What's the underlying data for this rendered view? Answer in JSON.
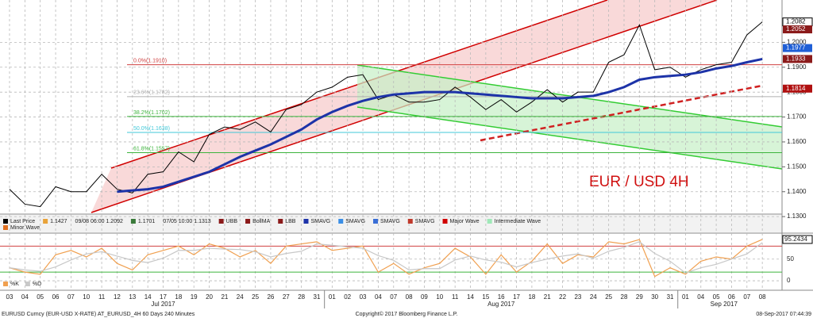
{
  "chart_data": {
    "type": "line",
    "annotation": "EUR / USD 4H",
    "categories": [
      "03",
      "04",
      "05",
      "06",
      "07",
      "10",
      "11",
      "12",
      "13",
      "14",
      "17",
      "18",
      "19",
      "20",
      "21",
      "24",
      "25",
      "26",
      "27",
      "28",
      "31",
      "01",
      "02",
      "03",
      "04",
      "07",
      "08",
      "09",
      "10",
      "11",
      "14",
      "15",
      "16",
      "17",
      "18",
      "21",
      "22",
      "23",
      "24",
      "25",
      "28",
      "29",
      "30",
      "31",
      "01",
      "04",
      "05",
      "06",
      "07",
      "08"
    ],
    "month_labels": [
      "Jul 2017",
      "Aug 2017",
      "Sep 2017"
    ],
    "series": [
      {
        "name": "Last Price",
        "color": "#000000",
        "values": [
          1.141,
          1.135,
          1.134,
          1.142,
          1.14,
          1.14,
          1.147,
          1.141,
          1.1395,
          1.147,
          1.148,
          1.156,
          1.152,
          1.163,
          1.166,
          1.165,
          1.168,
          1.164,
          1.173,
          1.175,
          1.18,
          1.182,
          1.186,
          1.187,
          1.177,
          1.179,
          1.176,
          1.176,
          1.177,
          1.182,
          1.178,
          1.173,
          1.177,
          1.172,
          1.176,
          1.181,
          1.176,
          1.18,
          1.18,
          1.192,
          1.195,
          1.207,
          1.189,
          1.19,
          1.186,
          1.189,
          1.191,
          1.192,
          1.203,
          1.2082
        ]
      },
      {
        "name": "1.1427",
        "color": "#e8a33a"
      },
      {
        "name": "09/08 06:00 1.2092"
      },
      {
        "name": "1.1701",
        "color": "#3a7a3a"
      },
      {
        "name": "07/05 10:00 1.1313"
      },
      {
        "name": "UBB",
        "color": "#8b1a1a"
      },
      {
        "name": "BollMA",
        "color": "#8b1a1a"
      },
      {
        "name": "LBB",
        "color": "#8b1a1a"
      },
      {
        "name": "SMAVG",
        "color": "#1d33a8",
        "values": [
          null,
          null,
          null,
          null,
          null,
          null,
          null,
          1.14,
          1.1405,
          1.141,
          1.142,
          1.144,
          1.146,
          1.148,
          1.151,
          1.154,
          1.1565,
          1.159,
          1.162,
          1.165,
          1.169,
          1.172,
          1.1745,
          1.1765,
          1.178,
          1.179,
          1.1795,
          1.18,
          1.18,
          1.18,
          1.1795,
          1.179,
          1.1785,
          1.178,
          1.1775,
          1.1775,
          1.1775,
          1.178,
          1.1785,
          1.18,
          1.182,
          1.185,
          1.186,
          1.1865,
          1.187,
          1.188,
          1.1895,
          1.1905,
          1.192,
          1.1933
        ]
      },
      {
        "name": "SMAVG",
        "color": "#3a8ee6"
      },
      {
        "name": "SMAVG",
        "color": "#3a6ed6"
      },
      {
        "name": "SMAVG",
        "color": "#c0392b"
      },
      {
        "name": "Major Wave",
        "color": "#d00000"
      },
      {
        "name": "Intermediate Wave",
        "color": "#9fe8b8"
      },
      {
        "name": "Minor Wave",
        "color": "#e07020"
      }
    ],
    "ylim": [
      1.131,
      1.217
    ],
    "yticks": [
      {
        "value": 1.13,
        "label": "1.1300"
      },
      {
        "value": 1.14,
        "label": "1.1400"
      },
      {
        "value": 1.15,
        "label": "1.1500"
      },
      {
        "value": 1.16,
        "label": "1.1600"
      },
      {
        "value": 1.17,
        "label": "1.1700"
      },
      {
        "value": 1.18,
        "label": "1.1800"
      },
      {
        "value": 1.19,
        "label": "1.1900"
      },
      {
        "value": 1.2,
        "label": "1.2000"
      }
    ],
    "grid": true,
    "price_tags": [
      {
        "value": 1.2082,
        "color": "#ffffff"
      },
      {
        "value": 1.2052,
        "color": "#8b1a1a"
      },
      {
        "value": 1.1977,
        "color": "#1f5fd6"
      },
      {
        "value": 1.1933,
        "color": "#8b1a1a"
      },
      {
        "value": 1.1814,
        "color": "#b01010"
      }
    ],
    "fib_levels": [
      {
        "value": 1.191,
        "label": "0.0%(1.1910)",
        "color": "#d04040"
      },
      {
        "value": 1.1782,
        "label": "23.6%(1.1782)",
        "color": "#b0b0b0"
      },
      {
        "value": 1.1702,
        "label": "38.2%(1.1702)",
        "color": "#3cb43c"
      },
      {
        "value": 1.1638,
        "label": "50.0%(1.1638)",
        "color": "#40c8d8"
      },
      {
        "value": 1.1557,
        "label": "61.8%(1.1557)",
        "color": "#3cb43c"
      }
    ],
    "oscillator": {
      "series": [
        {
          "name": "%K",
          "color": "#f0a050",
          "values": [
            30,
            20,
            15,
            60,
            70,
            55,
            75,
            40,
            25,
            60,
            70,
            80,
            60,
            85,
            75,
            55,
            70,
            40,
            80,
            85,
            90,
            70,
            75,
            80,
            20,
            40,
            15,
            30,
            40,
            75,
            55,
            15,
            60,
            20,
            45,
            85,
            40,
            60,
            55,
            90,
            85,
            95,
            10,
            30,
            15,
            45,
            55,
            50,
            80,
            95.2434
          ]
        },
        {
          "name": "%D",
          "color": "#c8c8c8",
          "values": [
            30,
            25,
            22,
            32,
            48,
            62,
            67,
            57,
            47,
            42,
            52,
            70,
            70,
            75,
            73,
            72,
            67,
            55,
            63,
            68,
            85,
            82,
            78,
            75,
            58,
            47,
            25,
            28,
            28,
            48,
            57,
            48,
            43,
            32,
            42,
            50,
            57,
            62,
            52,
            68,
            77,
            90,
            63,
            45,
            18,
            30,
            38,
            50,
            62,
            88
          ]
        }
      ],
      "ylim": [
        -20,
        108
      ],
      "yticks": [
        0,
        50
      ],
      "levels": [
        {
          "value": 80,
          "color": "#d04040"
        },
        {
          "value": 20,
          "color": "#3cb43c"
        }
      ],
      "tag": 95.2434
    }
  },
  "footer": {
    "left": "EURUSD Curncy (EUR-USD X-RATE) AT_EURUSD_4H 60 Days 240 Minutes",
    "center": "Copyright© 2017 Bloomberg Finance L.P.",
    "right": "08-Sep-2017 07:44:39"
  }
}
